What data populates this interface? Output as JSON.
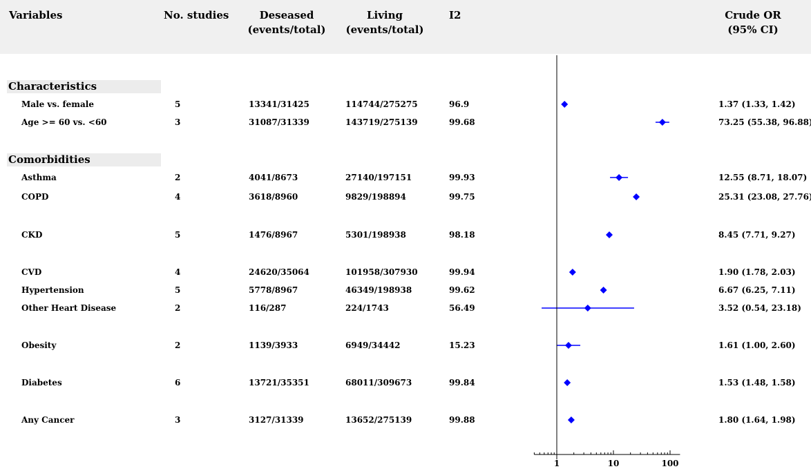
{
  "chart_data": {
    "type": "forest",
    "x_scale": "log",
    "xlim": [
      0.4,
      150
    ],
    "x_ticks": [
      1,
      10,
      100
    ],
    "x_tick_labels": [
      "1",
      "10",
      "100"
    ],
    "reference_line": 1,
    "marker_color": "#0000ff",
    "columns": {
      "variables": "Variables",
      "studies": "No. studies",
      "deceased": [
        "Deseased",
        "(events/total)"
      ],
      "living": [
        "Living",
        "(events/total)"
      ],
      "i2": "I2",
      "or": [
        "Crude OR",
        "(95% CI)"
      ]
    },
    "sections": [
      {
        "title": "Characteristics",
        "rows": [
          {
            "label": "Male vs. female",
            "studies": "5",
            "deceased": "13341/31425",
            "living": "114744/275275",
            "i2": "96.9",
            "or_text": "1.37 (1.33, 1.42)",
            "or": 1.37,
            "lo": 1.33,
            "hi": 1.42
          },
          {
            "label": "Age >= 60 vs. <60",
            "studies": "3",
            "deceased": "31087/31339",
            "living": "143719/275139",
            "i2": "99.68",
            "or_text": "73.25 (55.38, 96.88)",
            "or": 73.25,
            "lo": 55.38,
            "hi": 96.88
          }
        ]
      },
      {
        "title": "Comorbidities",
        "rows": [
          {
            "label": "Asthma",
            "studies": "2",
            "deceased": "4041/8673",
            "living": "27140/197151",
            "i2": "99.93",
            "or_text": "12.55 (8.71, 18.07)",
            "or": 12.55,
            "lo": 8.71,
            "hi": 18.07
          },
          {
            "label": "COPD",
            "studies": "4",
            "deceased": "3618/8960",
            "living": "9829/198894",
            "i2": "99.75",
            "or_text": "25.31 (23.08, 27.76)",
            "or": 25.31,
            "lo": 23.08,
            "hi": 27.76
          },
          {
            "label": "CKD",
            "studies": "5",
            "deceased": "1476/8967",
            "living": "5301/198938",
            "i2": "98.18",
            "or_text": "8.45 (7.71, 9.27)",
            "or": 8.45,
            "lo": 7.71,
            "hi": 9.27
          },
          {
            "label": "CVD",
            "studies": "4",
            "deceased": "24620/35064",
            "living": "101958/307930",
            "i2": "99.94",
            "or_text": "1.90 (1.78, 2.03)",
            "or": 1.9,
            "lo": 1.78,
            "hi": 2.03
          },
          {
            "label": "Hypertension",
            "studies": "5",
            "deceased": "5778/8967",
            "living": "46349/198938",
            "i2": "99.62",
            "or_text": "6.67 (6.25, 7.11)",
            "or": 6.67,
            "lo": 6.25,
            "hi": 7.11
          },
          {
            "label": "Other Heart Disease",
            "studies": "2",
            "deceased": "116/287",
            "living": "224/1743",
            "i2": "56.49",
            "or_text": "3.52 (0.54, 23.18)",
            "or": 3.52,
            "lo": 0.54,
            "hi": 23.18
          },
          {
            "label": "Obesity",
            "studies": "2",
            "deceased": "1139/3933",
            "living": "6949/34442",
            "i2": "15.23",
            "or_text": "1.61 (1.00, 2.60)",
            "or": 1.61,
            "lo": 1.0,
            "hi": 2.6
          },
          {
            "label": "Diabetes",
            "studies": "6",
            "deceased": "13721/35351",
            "living": "68011/309673",
            "i2": "99.84",
            "or_text": "1.53 (1.48, 1.58)",
            "or": 1.53,
            "lo": 1.48,
            "hi": 1.58
          },
          {
            "label": "Any Cancer",
            "studies": "3",
            "deceased": "3127/31339",
            "living": "13652/275139",
            "i2": "99.88",
            "or_text": "1.80 (1.64, 1.98)",
            "or": 1.8,
            "lo": 1.64,
            "hi": 1.98
          }
        ]
      }
    ]
  }
}
